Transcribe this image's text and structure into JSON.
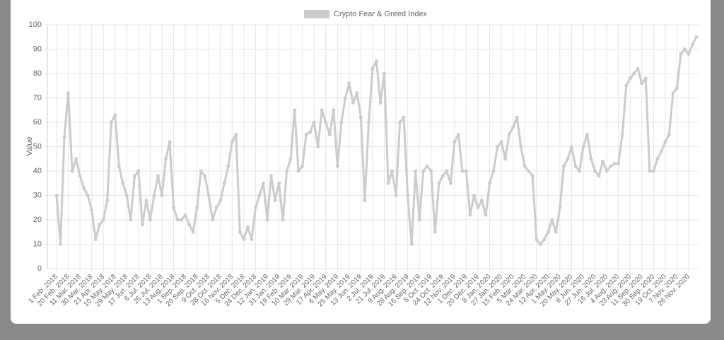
{
  "chart_data": {
    "type": "line",
    "legend": "Crypto Fear & Greed Index",
    "y_label": "Value",
    "color": "#cccccc",
    "grid": true,
    "ylim": [
      0,
      100
    ],
    "yticks": [
      0,
      10,
      20,
      30,
      40,
      50,
      60,
      70,
      80,
      90,
      100
    ],
    "categories": [
      "1 Feb. 2018",
      null,
      null,
      "20 Feb. 2018",
      null,
      null,
      "11 Mar. 2018",
      null,
      null,
      "30 Mar. 2018",
      null,
      null,
      "21 Apr. 2018",
      null,
      null,
      "10 May. 2018",
      null,
      null,
      "29 May. 2018",
      null,
      null,
      "17 Jun. 2018",
      null,
      null,
      "6 Jul. 2018",
      null,
      null,
      "25 Jul. 2018",
      null,
      null,
      "13 Aug. 2018",
      null,
      null,
      "1 Sep. 2018",
      null,
      null,
      "20 Sep. 2018",
      null,
      null,
      "9 Oct. 2018",
      null,
      null,
      "28 Oct. 2018",
      null,
      null,
      "16 Nov. 2018",
      null,
      null,
      "5 Dec. 2018",
      null,
      null,
      "24 Dec. 2018",
      null,
      null,
      "12 Jan. 2019",
      null,
      null,
      "31 Jan. 2019",
      null,
      null,
      "19 Feb. 2019",
      null,
      null,
      "10 Mar. 2019",
      null,
      null,
      "29 Mar. 2019",
      null,
      null,
      "17 Apr. 2019",
      null,
      null,
      "6 May. 2019",
      null,
      null,
      "25 May. 2019",
      null,
      null,
      "13 Jun. 2019",
      null,
      null,
      "2 Jul. 2019",
      null,
      null,
      "21 Jul. 2019",
      null,
      null,
      "9 Aug. 2019",
      null,
      null,
      "28 Aug. 2019",
      null,
      null,
      "16 Sep. 2019",
      null,
      null,
      "5 Oct. 2019",
      null,
      null,
      "24 Oct. 2019",
      null,
      null,
      "12 Nov. 2019",
      null,
      null,
      "1 Dec. 2019",
      null,
      null,
      "20 Dec. 2019",
      null,
      null,
      "8 Jan. 2020",
      null,
      null,
      "27 Jan. 2020",
      null,
      null,
      "15 Feb. 2020",
      null,
      null,
      "5 Mar. 2020",
      null,
      null,
      "24 Mar. 2020",
      null,
      null,
      "12 Apr. 2020",
      null,
      null,
      "1 May. 2020",
      null,
      null,
      "20 May. 2020",
      null,
      null,
      "8 Jun. 2020",
      null,
      null,
      "27 Jun. 2020",
      null,
      null,
      "16 Jul. 2020",
      null,
      null,
      "4 Aug. 2020",
      null,
      null,
      "23 Aug. 2020",
      null,
      null,
      "11 Sep. 2020",
      null,
      null,
      "30 Sep. 2020",
      null,
      null,
      "19 Oct. 2020",
      null,
      null,
      "7 Nov. 2020",
      null,
      null,
      "26 Nov. 2020",
      null,
      null
    ],
    "values": [
      30,
      10,
      54,
      72,
      40,
      45,
      38,
      33,
      30,
      24,
      12,
      18,
      20,
      28,
      60,
      63,
      42,
      35,
      30,
      20,
      38,
      40,
      18,
      28,
      20,
      30,
      38,
      30,
      45,
      52,
      25,
      20,
      20,
      22,
      18,
      15,
      25,
      40,
      38,
      30,
      20,
      25,
      28,
      35,
      42,
      52,
      55,
      15,
      12,
      17,
      12,
      25,
      30,
      35,
      20,
      38,
      28,
      35,
      20,
      40,
      45,
      65,
      40,
      42,
      55,
      56,
      60,
      50,
      65,
      60,
      55,
      65,
      42,
      60,
      70,
      76,
      68,
      72,
      62,
      28,
      60,
      82,
      85,
      68,
      80,
      35,
      40,
      30,
      60,
      62,
      30,
      10,
      40,
      20,
      40,
      42,
      40,
      15,
      35,
      38,
      40,
      35,
      52,
      55,
      40,
      40,
      22,
      30,
      25,
      28,
      22,
      35,
      40,
      50,
      52,
      45,
      55,
      58,
      62,
      50,
      42,
      40,
      38,
      12,
      10,
      12,
      15,
      20,
      15,
      25,
      42,
      45,
      50,
      42,
      40,
      50,
      55,
      45,
      40,
      38,
      44,
      40,
      42,
      43,
      43,
      55,
      75,
      78,
      80,
      82,
      76,
      78,
      40,
      40,
      45,
      48,
      52,
      55,
      72,
      74,
      88,
      90,
      88,
      92,
      95
    ]
  }
}
